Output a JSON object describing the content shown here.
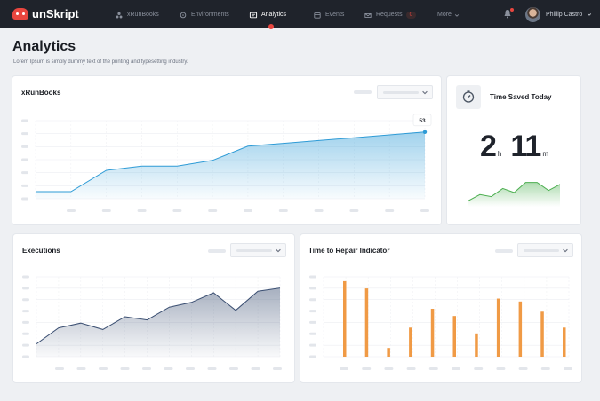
{
  "app": {
    "brand": "unSkript"
  },
  "nav": {
    "items": [
      {
        "label": "xRunBooks",
        "icon": "people-icon"
      },
      {
        "label": "Environments",
        "icon": "environments-icon"
      },
      {
        "label": "Analytics",
        "icon": "analytics-icon",
        "active": true
      },
      {
        "label": "Events",
        "icon": "calendar-icon"
      },
      {
        "label": "Requests",
        "icon": "requests-icon",
        "badge": "0"
      },
      {
        "label": "More",
        "icon": "chevron-down-icon"
      }
    ],
    "user": "Phillip Castro"
  },
  "page": {
    "title": "Analytics",
    "subtitle": "Lorem Ipsum is simply dummy text of the printing and typesetting industry."
  },
  "cards": {
    "xrunbooks": {
      "title": "xRunBooks",
      "tooltip": "53"
    },
    "time_saved": {
      "title": "Time Saved Today",
      "hours": "2",
      "hours_unit": "h",
      "minutes": "11",
      "minutes_unit": "m"
    },
    "executions": {
      "title": "Executions"
    },
    "repair": {
      "title": "Time to Repair Indicator"
    }
  },
  "colors": {
    "accent": "#2e9bd6",
    "navy": "#3b4f72",
    "orange": "#f09a45",
    "green": "#4caf50",
    "brand_red": "#e8463f"
  },
  "chart_data": [
    {
      "type": "area",
      "name": "xRunBooks",
      "x": [
        1,
        2,
        3,
        4,
        5,
        6,
        7,
        8,
        9,
        10,
        11,
        12
      ],
      "values": [
        5,
        5,
        20,
        23,
        23,
        27,
        37,
        39,
        41,
        43,
        45,
        47
      ],
      "highlight_value": 53,
      "grid": true
    },
    {
      "type": "area",
      "name": "Time Saved Today sparkline",
      "values": [
        3,
        6,
        5,
        9,
        7,
        12,
        12,
        8,
        11
      ]
    },
    {
      "type": "area",
      "name": "Executions",
      "x": [
        1,
        2,
        3,
        4,
        5,
        6,
        7,
        8,
        9,
        10,
        11,
        12
      ],
      "values": [
        8,
        18,
        21,
        17,
        25,
        23,
        31,
        34,
        40,
        29,
        41,
        43
      ],
      "grid": true
    },
    {
      "type": "bar",
      "name": "Time to Repair Indicator",
      "categories": [
        1,
        2,
        3,
        4,
        5,
        6,
        7,
        8,
        9,
        10,
        11
      ],
      "values": [
        52,
        47,
        6,
        20,
        33,
        28,
        16,
        40,
        38,
        31,
        20
      ],
      "grid": true
    }
  ]
}
